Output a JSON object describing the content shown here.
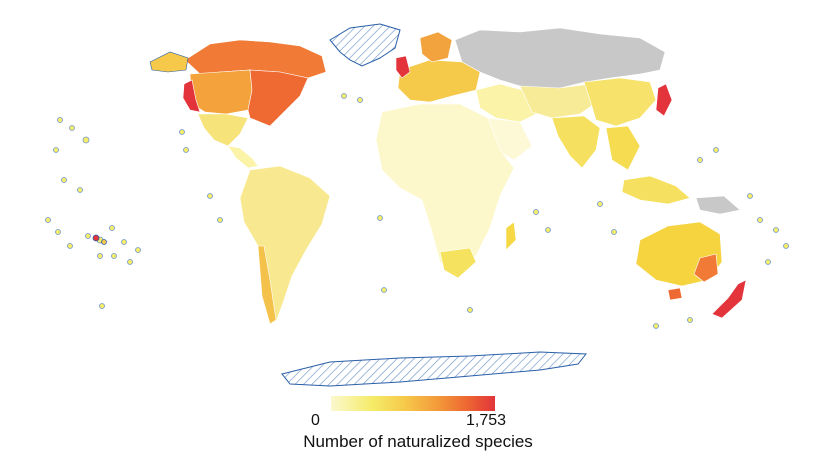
{
  "map": {
    "projection": "equal-area (Eckert-like) world map",
    "no_data_color": "#c8c8c8",
    "hatched_regions": [
      "Greenland",
      "Antarctica"
    ],
    "coastline_color": "#2a5fa8",
    "regions": [
      {
        "name": "Canada",
        "fill": "#f07a36"
      },
      {
        "name": "USA west",
        "fill": "#f4a23c"
      },
      {
        "name": "USA east",
        "fill": "#ee6a32"
      },
      {
        "name": "California",
        "fill": "#e2343a"
      },
      {
        "name": "Mexico",
        "fill": "#f6e37a"
      },
      {
        "name": "Central America",
        "fill": "#fbf3a8"
      },
      {
        "name": "South America",
        "fill": "#f8e990"
      },
      {
        "name": "Chile",
        "fill": "#f4c24a"
      },
      {
        "name": "Africa",
        "fill": "#fcf8cc"
      },
      {
        "name": "South Africa",
        "fill": "#f5e25e"
      },
      {
        "name": "Madagascar",
        "fill": "#f5d844"
      },
      {
        "name": "Europe",
        "fill": "#f5c94a"
      },
      {
        "name": "United Kingdom",
        "fill": "#e2343a"
      },
      {
        "name": "Scandinavia",
        "fill": "#f3a33e"
      },
      {
        "name": "Russia",
        "fill": "#c8c8c8"
      },
      {
        "name": "Middle East",
        "fill": "#fbf3a8"
      },
      {
        "name": "Arabia",
        "fill": "#fdf9d6"
      },
      {
        "name": "Central Asia",
        "fill": "#f8eb98"
      },
      {
        "name": "India",
        "fill": "#f6e060"
      },
      {
        "name": "China",
        "fill": "#f7e36c"
      },
      {
        "name": "Japan",
        "fill": "#e2343a"
      },
      {
        "name": "Southeast Asia",
        "fill": "#f5dc50"
      },
      {
        "name": "Indonesia",
        "fill": "#f6e060"
      },
      {
        "name": "New Guinea",
        "fill": "#c8c8c8"
      },
      {
        "name": "Australia",
        "fill": "#f5d440"
      },
      {
        "name": "Australia southeast",
        "fill": "#f07a36"
      },
      {
        "name": "Tasmania",
        "fill": "#ee6a32"
      },
      {
        "name": "New Zealand",
        "fill": "#e2343a"
      }
    ]
  },
  "legend": {
    "min_label": "0",
    "max_label": "1,753",
    "title": "Number of naturalized species",
    "colors": [
      "#fbf8cf",
      "#f5ec69",
      "#f6c94a",
      "#f39a3a",
      "#ee6a32",
      "#e2343a"
    ]
  }
}
